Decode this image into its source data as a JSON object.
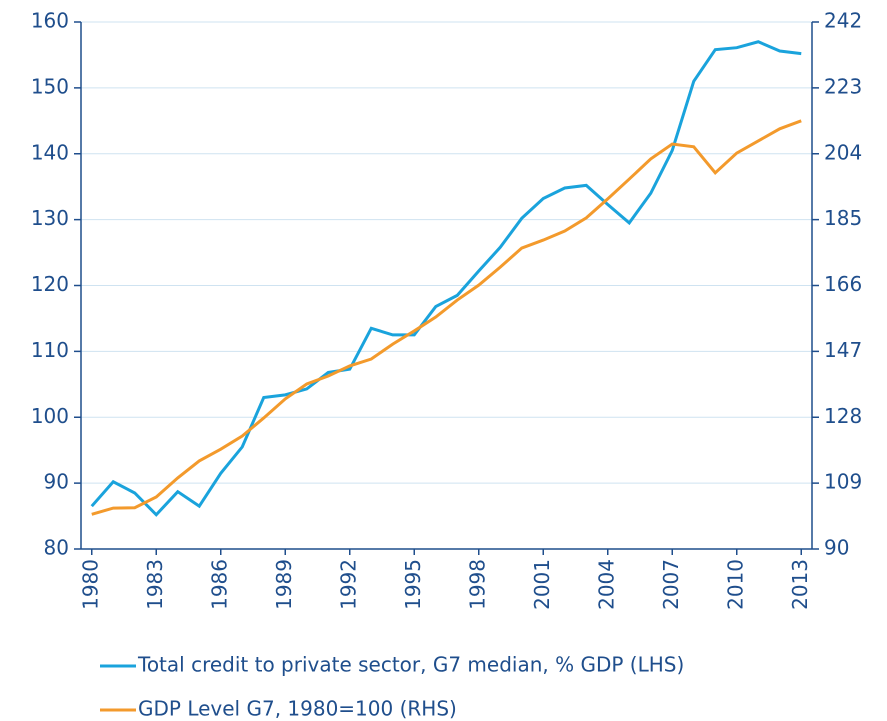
{
  "chart_data": {
    "type": "line",
    "x": [
      1980,
      1981,
      1982,
      1983,
      1984,
      1985,
      1986,
      1987,
      1988,
      1989,
      1990,
      1991,
      1992,
      1993,
      1994,
      1995,
      1996,
      1997,
      1998,
      1999,
      2000,
      2001,
      2002,
      2003,
      2004,
      2005,
      2006,
      2007,
      2008,
      2009,
      2010,
      2011,
      2012,
      2013
    ],
    "xlim": [
      1979.5,
      2013.5
    ],
    "xticks": [
      1980,
      1983,
      1986,
      1989,
      1992,
      1995,
      1998,
      2001,
      2004,
      2007,
      2010,
      2013
    ],
    "ylim": [
      80,
      160
    ],
    "yticks": [
      80,
      90,
      100,
      110,
      120,
      130,
      140,
      150,
      160
    ],
    "y2lim": [
      90,
      242
    ],
    "y2ticks": [
      90,
      109,
      128,
      147,
      166,
      185,
      204,
      223,
      242
    ],
    "grid": true,
    "legend": "bottom",
    "series": [
      {
        "name": "Total credit to private sector, G7 median, % GDP (LHS)",
        "color": "#1aa3dc",
        "values": [
          86.5,
          90.2,
          88.5,
          85.2,
          88.7,
          86.5,
          91.5,
          95.5,
          103,
          103.4,
          104.3,
          106.8,
          107.3,
          113.5,
          112.5,
          112.5,
          116.8,
          118.5,
          122.2,
          125.8,
          130.2,
          133.2,
          134.8,
          135.2,
          132.3,
          129.5,
          134,
          140.5,
          151,
          155.8,
          156.1,
          157,
          155.6,
          155.2
        ]
      },
      {
        "name": "GDP Level G7, 1980=100 (RHS)",
        "color": "#f39a2c",
        "axis": "y2",
        "values": [
          100,
          101.8,
          101.9,
          105,
          110.5,
          115.4,
          118.8,
          122.6,
          127.8,
          133.3,
          137.6,
          139.9,
          142.8,
          144.8,
          149.1,
          152.9,
          156.9,
          161.8,
          166.1,
          171.3,
          176.8,
          179.1,
          181.7,
          185.5,
          191,
          196.7,
          202.5,
          206.8,
          206,
          198.5,
          204.2,
          207.7,
          211.2,
          213.5
        ]
      }
    ]
  }
}
